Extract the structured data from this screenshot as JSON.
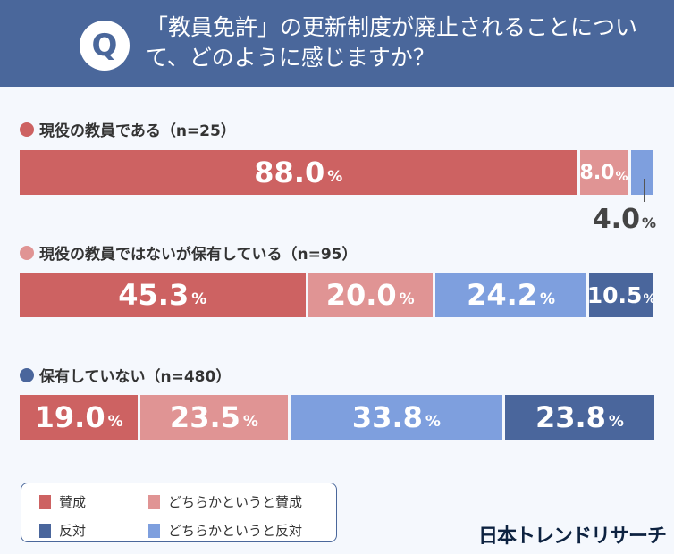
{
  "header": {
    "badge": "Q",
    "title": "「教員免許」の更新制度が廃止されることについて、どのように感じますか？"
  },
  "colors": {
    "賛成": "#cd6262",
    "どちらかというと賛成": "#e09494",
    "どちらかというと反対": "#7e9fde",
    "反対": "#4a669c",
    "header": "#4a679b"
  },
  "legend": [
    "賛成",
    "どちらかというと賛成",
    "反対",
    "どちらかというと反対"
  ],
  "logo": "日本トレンドリサーチ",
  "chart_data": {
    "type": "bar",
    "orientation": "horizontal",
    "stacked": true,
    "percent_suffix": "%",
    "categories": [
      "現役の教員である（n=25）",
      "現役の教員ではないが保有している（n=95）",
      "保有していない（n=480）"
    ],
    "series": [
      {
        "name": "賛成",
        "values": [
          88.0,
          45.3,
          19.0
        ]
      },
      {
        "name": "どちらかというと賛成",
        "values": [
          8.0,
          20.0,
          23.5
        ]
      },
      {
        "name": "どちらかというと反対",
        "values": [
          4.0,
          24.2,
          33.8
        ]
      },
      {
        "name": "反対",
        "values": [
          0,
          10.5,
          23.8
        ]
      }
    ],
    "xlim": [
      0,
      100
    ]
  }
}
